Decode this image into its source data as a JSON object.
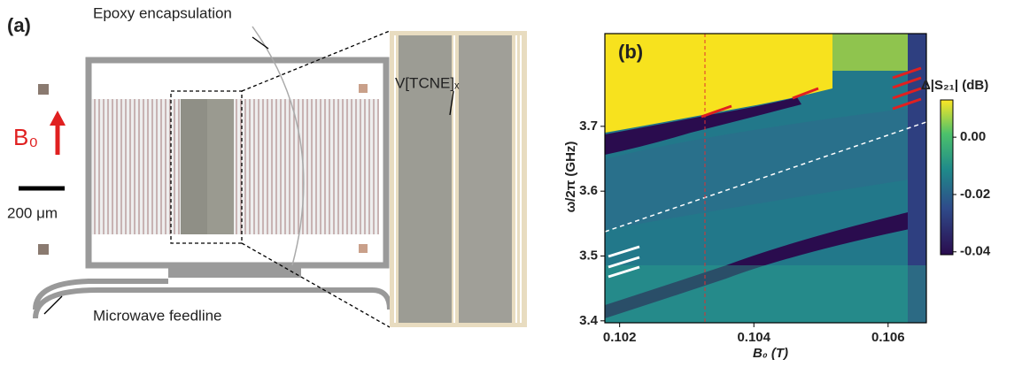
{
  "panel_a": {
    "label": "(a)",
    "epoxy": "Epoxy encapsulation",
    "field": "B₀",
    "scale": "200 μm",
    "feedline": "Microwave feedline",
    "material": "V[TCNE]ₓ"
  },
  "panel_b": {
    "label": "(b)",
    "xlabel": "B₀ (T)",
    "ylabel": "ω/2π (GHz)",
    "colorbar_label": "Δ|S₂₁| (dB)",
    "xlim": [
      0.10178,
      0.10657
    ],
    "xticks": [
      0.102,
      0.104,
      0.106
    ],
    "ylim": [
      3.397,
      3.843
    ],
    "yticks": [
      3.4,
      3.5,
      3.6,
      3.7
    ],
    "clim": [
      -0.041,
      0.013
    ],
    "cticks": [
      {
        "value": 0,
        "label": "0.00"
      },
      -0.02,
      -0.04
    ]
  }
}
